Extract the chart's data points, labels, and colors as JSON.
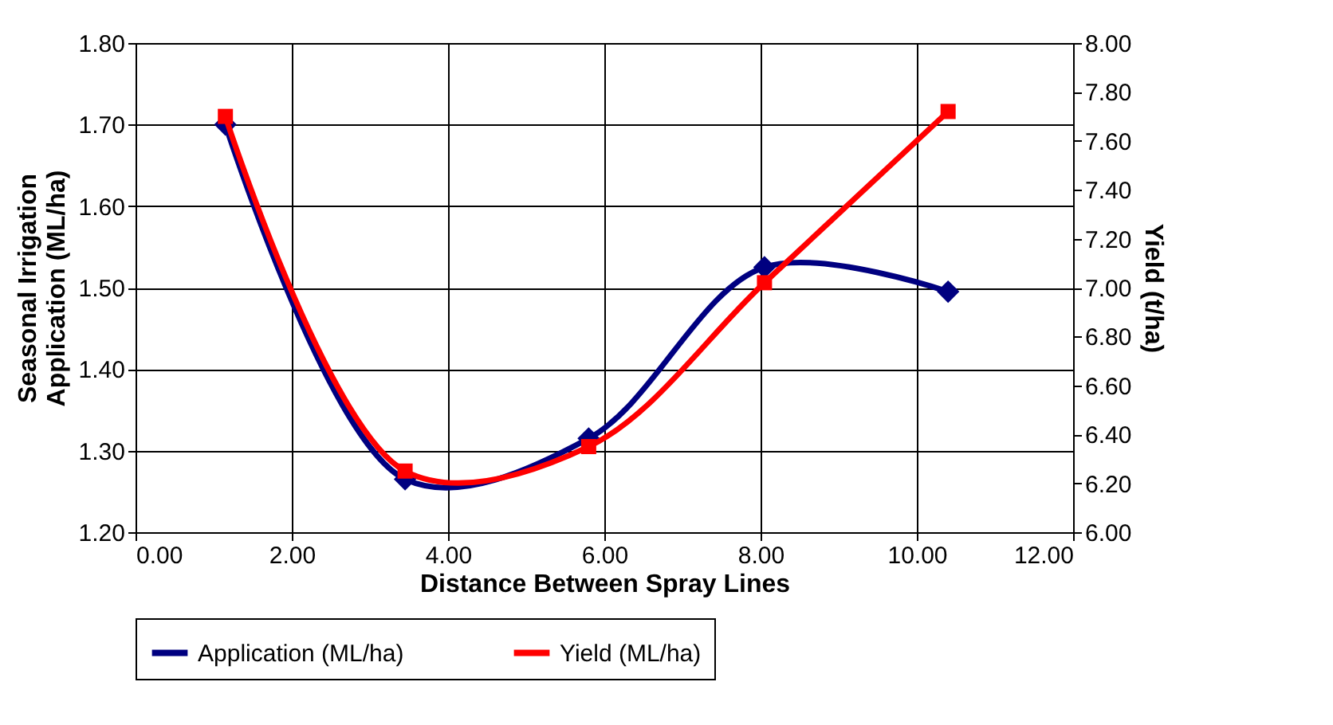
{
  "chart_data": {
    "type": "line",
    "xlabel": "Distance Between Spray Lines",
    "ylabel": "Seasonal Irrigation Application (ML/ha)",
    "y2label": "Yield (t/ha)",
    "x": [
      1.15,
      3.45,
      5.8,
      8.05,
      10.4
    ],
    "series": [
      {
        "name": "Application (ML/ha)",
        "color": "#000080",
        "marker": "diamond",
        "values": [
          1.7,
          1.265,
          1.315,
          1.525,
          1.495
        ]
      },
      {
        "name": "Yield (ML/ha)",
        "color": "#ff0000",
        "marker": "square",
        "axis": "y2",
        "values": [
          7.7,
          6.25,
          6.35,
          7.02,
          7.72
        ]
      }
    ],
    "xlim": [
      0,
      12
    ],
    "xticks": [
      {
        "value": 0,
        "label": "0.00"
      },
      {
        "value": 2,
        "label": "2.00"
      },
      {
        "value": 4,
        "label": "4.00"
      },
      {
        "value": 6,
        "label": "6.00"
      },
      {
        "value": 8,
        "label": "8.00"
      },
      {
        "value": 10,
        "label": "10.00"
      },
      {
        "value": 12,
        "label": "12.00"
      }
    ],
    "ylim": [
      1.2,
      1.8
    ],
    "yticks": [
      {
        "value": 1.2,
        "label": "1.20"
      },
      {
        "value": 1.3,
        "label": "1.30"
      },
      {
        "value": 1.4,
        "label": "1.40"
      },
      {
        "value": 1.5,
        "label": "1.50"
      },
      {
        "value": 1.6,
        "label": "1.60"
      },
      {
        "value": 1.7,
        "label": "1.70"
      },
      {
        "value": 1.8,
        "label": "1.80"
      }
    ],
    "y2lim": [
      6,
      8
    ],
    "y2ticks": [
      {
        "value": 6,
        "label": "6.00"
      },
      {
        "value": 6.2,
        "label": "6.20"
      },
      {
        "value": 6.4,
        "label": "6.40"
      },
      {
        "value": 6.6,
        "label": "6.60"
      },
      {
        "value": 6.8,
        "label": "6.80"
      },
      {
        "value": 7,
        "label": "7.00"
      },
      {
        "value": 7.2,
        "label": "7.20"
      },
      {
        "value": 7.4,
        "label": "7.40"
      },
      {
        "value": 7.6,
        "label": "7.60"
      },
      {
        "value": 7.8,
        "label": "7.80"
      },
      {
        "value": 8,
        "label": "8.00"
      }
    ],
    "grid": true,
    "legend": "bottom"
  }
}
